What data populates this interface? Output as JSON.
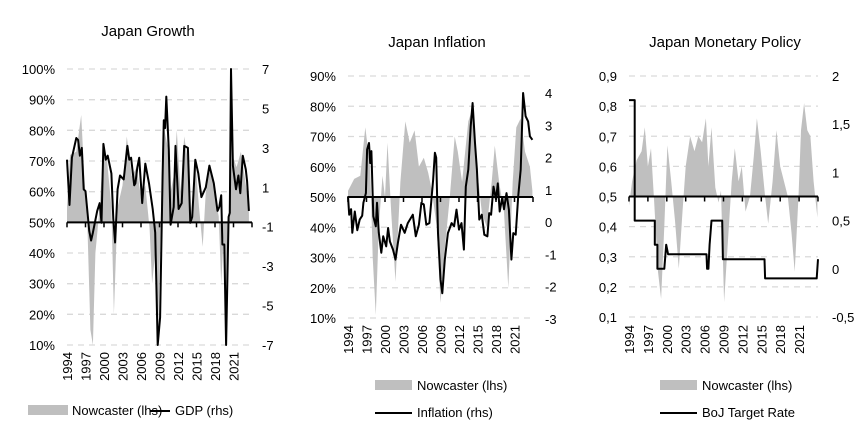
{
  "chart_data": [
    {
      "type": "area+line",
      "title": "Japan Growth",
      "x_tick_labels": [
        "1994",
        "1997",
        "2000",
        "2003",
        "2006",
        "2009",
        "2012",
        "2015",
        "2018",
        "2021"
      ],
      "left_axis": {
        "range": [
          10,
          100
        ],
        "ticks": [
          10,
          20,
          30,
          40,
          50,
          60,
          70,
          80,
          90,
          100
        ],
        "tick_labels": [
          "10%",
          "20%",
          "30%",
          "40%",
          "50%",
          "60%",
          "70%",
          "80%",
          "90%",
          "100%"
        ],
        "baseline": 50
      },
      "right_axis": {
        "range": [
          -7,
          7
        ],
        "ticks": [
          -7,
          -5,
          -3,
          -1,
          1,
          3,
          5,
          7
        ],
        "tick_labels": [
          "-7",
          "-5",
          "-3",
          "-1",
          "1",
          "3",
          "5",
          "7"
        ]
      },
      "grid": true,
      "legend": "bottom",
      "series": [
        {
          "name": "Nowcaster (lhs)",
          "type": "area",
          "axis": "left",
          "color": "#bfbfbf",
          "x": [
            1994,
            1994.5,
            1995.5,
            1996.3,
            1996.8,
            1997.3,
            1997.8,
            1998.2,
            1998.6,
            1999.3,
            1999.8,
            2000.5,
            2001.2,
            2001.6,
            2002.2,
            2003,
            2003.7,
            2004.5,
            2005.3,
            2006,
            2006.7,
            2007.4,
            2007.8,
            2008.3,
            2008.7,
            2009.2,
            2009.6,
            2010.3,
            2010.8,
            2011.3,
            2011.8,
            2012.4,
            2013,
            2013.6,
            2014.2,
            2014.8,
            2015.4,
            2016,
            2016.5,
            2017.2,
            2017.9,
            2018.6,
            2019,
            2019.4,
            2019.8,
            2020.3,
            2020.8,
            2021.5,
            2022.2,
            2022.8,
            2023.5
          ],
          "y": [
            55,
            72,
            73,
            85,
            65,
            50,
            15,
            10,
            40,
            55,
            72,
            70,
            55,
            20,
            55,
            62,
            78,
            65,
            68,
            58,
            62,
            48,
            30,
            40,
            10,
            50,
            82,
            75,
            60,
            65,
            80,
            60,
            78,
            70,
            50,
            70,
            55,
            42,
            60,
            68,
            60,
            52,
            30,
            45,
            15,
            60,
            72,
            68,
            73,
            65,
            55
          ]
        },
        {
          "name": "GDP (rhs)",
          "type": "line",
          "axis": "right",
          "color": "#000000",
          "x": [
            1994,
            1994.4,
            1994.8,
            1995.5,
            1995.8,
            1996.1,
            1996.4,
            1996.7,
            1997,
            1997.6,
            1997.9,
            1998.2,
            1998.9,
            1999.3,
            1999.6,
            1999.9,
            2000.3,
            2000.6,
            2001.2,
            2001.5,
            2001.8,
            2002.2,
            2002.6,
            2003.2,
            2003.8,
            2004.1,
            2004.4,
            2004.9,
            2005.1,
            2005.4,
            2005.7,
            2006.2,
            2006.7,
            2007.3,
            2007.9,
            2008.3,
            2008.7,
            2009.1,
            2009.5,
            2009.7,
            2009.9,
            2010.1,
            2010.5,
            2010.8,
            2011.3,
            2011.6,
            2012.1,
            2012.6,
            2013,
            2013.6,
            2014,
            2014.3,
            2014.8,
            2015.3,
            2015.8,
            2016.5,
            2017.1,
            2017.8,
            2018.4,
            2018.7,
            2019,
            2019.2,
            2019.5,
            2019.8,
            2020.2,
            2020.4,
            2020.6,
            2020.9,
            2021.4,
            2021.8,
            2022.1,
            2022.5,
            2023,
            2023.2,
            2023.5
          ],
          "y": [
            2.4,
            0.1,
            2.5,
            3.5,
            3.4,
            2.6,
            3.0,
            0.9,
            0.8,
            -1.2,
            -1.7,
            -1.3,
            -0.2,
            0.2,
            -0.8,
            3.2,
            2.4,
            2.6,
            1.7,
            -0.6,
            -1.8,
            0.9,
            1.6,
            1.4,
            3.1,
            2.4,
            2.5,
            1.1,
            1.2,
            2.0,
            2.5,
            0.2,
            2.2,
            1.2,
            -0.1,
            -1.3,
            -7,
            -5.6,
            1.6,
            4.4,
            4.0,
            5.6,
            2.9,
            -0.9,
            0,
            3.1,
            -0.1,
            0.2,
            3.1,
            3.0,
            -0.8,
            -0.5,
            2.4,
            1.7,
            0.5,
            1.0,
            2.1,
            1.2,
            -0.2,
            0,
            0.6,
            -1.9,
            -1.9,
            -7,
            -0.5,
            -0.3,
            7,
            2.1,
            0.9,
            1.6,
            0.7,
            2.6,
            1.9,
            1.3,
            -0.2
          ]
        }
      ]
    },
    {
      "type": "area+line",
      "title": "Japan Inflation",
      "x_tick_labels": [
        "1994",
        "1997",
        "2000",
        "2003",
        "2006",
        "2009",
        "2012",
        "2015",
        "2018",
        "2021"
      ],
      "left_axis": {
        "range": [
          10,
          90
        ],
        "ticks": [
          10,
          20,
          30,
          40,
          50,
          60,
          70,
          80,
          90
        ],
        "tick_labels": [
          "10%",
          "20%",
          "30%",
          "40%",
          "50%",
          "60%",
          "70%",
          "80%",
          "90%"
        ],
        "baseline": 50
      },
      "right_axis": {
        "range": [
          -3,
          4
        ],
        "ticks": [
          -3,
          -2,
          -1,
          0,
          1,
          2,
          3,
          4
        ],
        "tick_labels": [
          "-3",
          "-2",
          "-1",
          "0",
          "1",
          "2",
          "3",
          "4"
        ]
      },
      "grid": true,
      "legend": "bottom",
      "series": [
        {
          "name": "Nowcaster (lhs)",
          "type": "area",
          "axis": "left",
          "color": "#bfbfbf",
          "x": [
            1994,
            1995,
            1996,
            1996.8,
            1997.6,
            1998,
            1998.5,
            1999,
            1999.6,
            2000,
            2000.4,
            2001,
            2001.7,
            2002.5,
            2003.3,
            2004,
            2004.8,
            2005.5,
            2006.3,
            2007,
            2007.6,
            2008.4,
            2009,
            2009.8,
            2010.5,
            2011.3,
            2011.8,
            2012.5,
            2013.5,
            2014.3,
            2015,
            2015.7,
            2016.5,
            2017.3,
            2017.8,
            2018.5,
            2019.3,
            2020,
            2020.7,
            2021.3,
            2022,
            2022.7,
            2023.5,
            2023.9
          ],
          "y": [
            52,
            56,
            57,
            73,
            60,
            30,
            11,
            40,
            57,
            50,
            68,
            45,
            22,
            55,
            75,
            68,
            72,
            60,
            63,
            58,
            52,
            40,
            15,
            35,
            50,
            70,
            65,
            55,
            75,
            80,
            58,
            45,
            40,
            55,
            67,
            55,
            45,
            20,
            55,
            73,
            76,
            65,
            60,
            52
          ]
        },
        {
          "name": "Inflation (rhs)",
          "type": "line",
          "axis": "right",
          "color": "#000000",
          "x": [
            1994,
            1994.2,
            1994.5,
            1994.7,
            1995.1,
            1995.5,
            1995.9,
            1996.3,
            1996.5,
            1996.9,
            1997.1,
            1997.4,
            1997.6,
            1997.8,
            1998.1,
            1998.5,
            1998.7,
            1999,
            1999.4,
            1999.7,
            2000.2,
            2000.5,
            2000.8,
            2001.3,
            2001.7,
            2002.1,
            2002.6,
            2003.2,
            2003.7,
            2004.5,
            2005,
            2005.5,
            2005.9,
            2006.3,
            2006.7,
            2007.2,
            2007.8,
            2008.1,
            2008.3,
            2008.6,
            2009,
            2009.3,
            2009.7,
            2010.2,
            2010.8,
            2011.2,
            2011.6,
            2012,
            2012.4,
            2012.8,
            2013.1,
            2013.5,
            2013.9,
            2014.2,
            2014.6,
            2014.9,
            2015.3,
            2015.7,
            2016.1,
            2016.6,
            2016.9,
            2017.2,
            2017.6,
            2018,
            2018.3,
            2018.6,
            2019,
            2019.3,
            2019.7,
            2020.1,
            2020.5,
            2020.8,
            2021.2,
            2021.6,
            2022,
            2022.4,
            2022.8,
            2023.2,
            2023.5,
            2023.9
          ],
          "y": [
            0.8,
            0.23,
            0.4,
            -0.33,
            0.33,
            -0.25,
            0.08,
            0.2,
            0.6,
            0.9,
            2.25,
            2.45,
            1.83,
            2.2,
            0.18,
            -0.13,
            0.6,
            -0.33,
            -0.95,
            -0.44,
            -0.75,
            -0.18,
            -0.6,
            -0.85,
            -1.16,
            -0.64,
            -0.08,
            -0.33,
            -0.03,
            0.23,
            -0.44,
            -0.08,
            0.6,
            0.55,
            -0.08,
            -0.03,
            1.3,
            2.15,
            2.0,
            -0.34,
            -1.78,
            -2.2,
            -1.16,
            -0.34,
            -0.03,
            -0.13,
            0.39,
            -0.23,
            -0.03,
            -0.85,
            1.1,
            1.63,
            2.97,
            3.69,
            2.45,
            1.63,
            0.08,
            0.23,
            -0.39,
            -0.44,
            0.28,
            0.23,
            1.1,
            0.7,
            1.2,
            0.33,
            0.75,
            0.4,
            0.9,
            0.39,
            -1.16,
            -0.34,
            -0.39,
            0.8,
            1.63,
            4.05,
            3.28,
            3.12,
            2.66,
            2.55
          ]
        }
      ]
    },
    {
      "type": "area+line",
      "title": "Japan Monetary Policy",
      "x_tick_labels": [
        "1994",
        "1997",
        "2000",
        "2003",
        "2006",
        "2009",
        "2012",
        "2015",
        "2018",
        "2021"
      ],
      "left_axis": {
        "range": [
          0.1,
          0.9
        ],
        "ticks": [
          0.1,
          0.2,
          0.3,
          0.4,
          0.5,
          0.6,
          0.7,
          0.8,
          0.9
        ],
        "tick_labels": [
          "0,1",
          "0,2",
          "0,3",
          "0,4",
          "0,5",
          "0,6",
          "0,7",
          "0,8",
          "0,9"
        ],
        "baseline": 0.5
      },
      "right_axis": {
        "range": [
          -0.5,
          2
        ],
        "ticks": [
          -0.5,
          0,
          0.5,
          1,
          1.5,
          2
        ],
        "tick_labels": [
          "-0,5",
          "0",
          "0,5",
          "1",
          "1,5",
          "2"
        ]
      },
      "grid": true,
      "legend": "bottom",
      "series": [
        {
          "name": "Nowcaster (lhs)",
          "type": "area",
          "axis": "left",
          "color": "#bfbfbf",
          "x": [
            1994,
            1994.5,
            1995.2,
            1996,
            1996.5,
            1997,
            1997.5,
            1998,
            1998.6,
            1999.1,
            1999.6,
            2000.1,
            2000.7,
            2001.3,
            2001.9,
            2002.5,
            2003,
            2003.7,
            2004.4,
            2005,
            2005.6,
            2006.2,
            2006.6,
            2007.1,
            2007.7,
            2008.2,
            2008.6,
            2009.1,
            2009.7,
            2010.3,
            2010.8,
            2011.4,
            2011.9,
            2012.5,
            2013.2,
            2013.8,
            2014.3,
            2014.9,
            2015.6,
            2016.1,
            2016.8,
            2017.4,
            2018,
            2018.6,
            2019.2,
            2019.8,
            2020.3,
            2020.9,
            2021.3,
            2021.8,
            2022.3,
            2022.8,
            2023.3,
            2023.9
          ],
          "y": [
            0.47,
            0.55,
            0.62,
            0.65,
            0.73,
            0.6,
            0.66,
            0.48,
            0.25,
            0.16,
            0.4,
            0.67,
            0.55,
            0.42,
            0.26,
            0.45,
            0.6,
            0.7,
            0.65,
            0.7,
            0.68,
            0.76,
            0.6,
            0.73,
            0.53,
            0.48,
            0.52,
            0.15,
            0.35,
            0.55,
            0.66,
            0.55,
            0.6,
            0.45,
            0.5,
            0.63,
            0.76,
            0.65,
            0.5,
            0.41,
            0.55,
            0.72,
            0.6,
            0.55,
            0.5,
            0.38,
            0.25,
            0.5,
            0.72,
            0.81,
            0.72,
            0.7,
            0.55,
            0.43
          ]
        },
        {
          "name": "BoJ Target Rate",
          "type": "step",
          "axis": "right",
          "color": "#000000",
          "x": [
            1994,
            1994.9,
            1994.9,
            1998.1,
            1998.1,
            1998.5,
            1998.5,
            1999.6,
            1999.9,
            2000.2,
            2000.4,
            2006.3,
            2006.4,
            2006.6,
            2006.8,
            2007.1,
            2008.8,
            2008.9,
            2015.5,
            2015.6,
            2023.8,
            2024
          ],
          "y": [
            1.75,
            1.75,
            0.5,
            0.5,
            0.25,
            0.25,
            0,
            0,
            0.25,
            0.15,
            0.15,
            0.15,
            0,
            0,
            0.25,
            0.5,
            0.5,
            0.1,
            0.1,
            -0.1,
            -0.1,
            0.1
          ]
        }
      ]
    }
  ]
}
